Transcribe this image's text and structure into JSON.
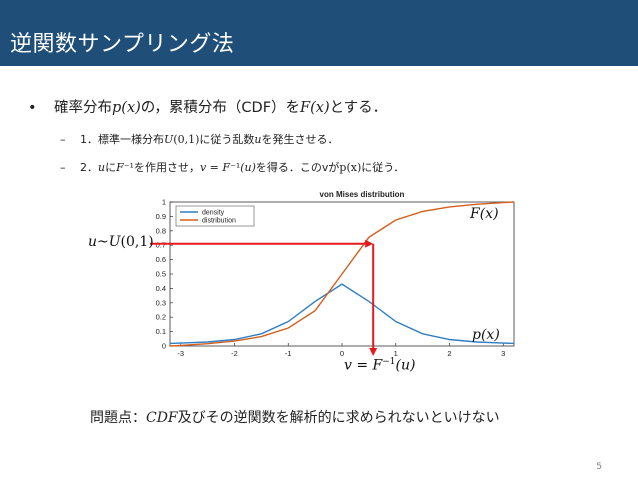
{
  "slide": {
    "title": "逆関数サンプリング法",
    "page_number": "5"
  },
  "bullets": {
    "main_marker": "•",
    "main": [
      "確率分布",
      "p(x)",
      "の，累積分布（CDF）を",
      "F(x)",
      "とする．"
    ],
    "sub_marker": "–",
    "sub1": [
      "1．標準一様分布",
      "U",
      "(0,1)",
      "に従う乱数",
      "u",
      "を発生させる．"
    ],
    "sub2": [
      "2．",
      "u",
      "に",
      "F",
      "⁻¹",
      "を作用させ，",
      "v = F",
      "⁻¹",
      "(u)",
      "を得る．このv",
      "が",
      "p(x)",
      "に従う．"
    ]
  },
  "annotations": {
    "u_label_parts": [
      "u~U",
      "(0,1)"
    ],
    "Fx_label": "F(x)",
    "px_label": "p(x)",
    "v_label_parts": [
      "v = F",
      "−1",
      "(u)"
    ]
  },
  "problem": [
    "問題点：",
    "CDF",
    "及びその逆関数を解析的に求められないといけない"
  ],
  "colors": {
    "title_bar": "#1f4e79",
    "density": "#2f7fc1",
    "distribution": "#d35f1e",
    "arrow": "#e8191e"
  },
  "chart_data": {
    "type": "line",
    "title": "von Mises distribution",
    "xlabel": "",
    "ylabel": "",
    "xlim": [
      -3.2,
      3.2
    ],
    "ylim": [
      0,
      1
    ],
    "xticks": [
      "-3",
      "-2",
      "-1",
      "0",
      "1",
      "2",
      "3"
    ],
    "yticks": [
      "0",
      "0.1",
      "0.2",
      "0.3",
      "0.4",
      "0.5",
      "0.6",
      "0.7",
      "0.8",
      "0.9",
      "1"
    ],
    "legend_position": "top-left",
    "series": [
      {
        "name": "density",
        "x": [
          -3.2,
          -3.0,
          -2.5,
          -2.0,
          -1.5,
          -1.0,
          -0.5,
          0.0,
          0.5,
          1.0,
          1.5,
          2.0,
          2.5,
          3.0,
          3.2
        ],
        "values": [
          0.018,
          0.02,
          0.028,
          0.045,
          0.085,
          0.17,
          0.31,
          0.43,
          0.31,
          0.17,
          0.085,
          0.045,
          0.028,
          0.02,
          0.018
        ]
      },
      {
        "name": "distribution",
        "x": [
          -3.2,
          -3.0,
          -2.5,
          -2.0,
          -1.5,
          -1.0,
          -0.5,
          0.0,
          0.5,
          1.0,
          1.5,
          2.0,
          2.5,
          3.0,
          3.2
        ],
        "values": [
          0.0,
          0.004,
          0.016,
          0.034,
          0.065,
          0.125,
          0.245,
          0.5,
          0.755,
          0.875,
          0.935,
          0.966,
          0.984,
          0.996,
          1.0
        ]
      }
    ],
    "arrow_u": 0.71,
    "arrow_v": 0.58
  }
}
